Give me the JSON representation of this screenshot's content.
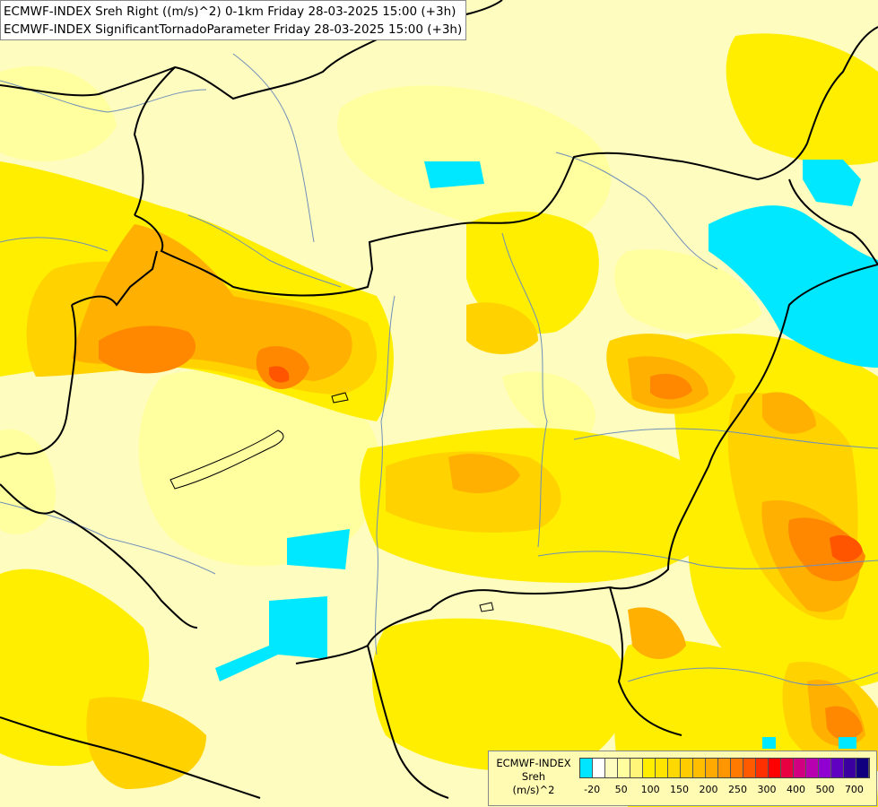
{
  "map": {
    "title_line1": "ECMWF-INDEX Sreh Right ((m/s)^2) 0-1km Friday 28-03-2025 15:00 (+3h)",
    "title_line2": "ECMWF-INDEX SignificantTornadoParameter Friday 28-03-2025 15:00 (+3h)",
    "colors": {
      "background": "#fffcc0",
      "pale": "#ffffa0",
      "yellow": "#ffee00",
      "gold": "#ffd200",
      "amber": "#ffb000",
      "orange": "#ff8800",
      "deep_orange": "#ff5500",
      "red": "#ff2200",
      "cyan": "#00e8ff",
      "border": "#000000",
      "river": "#6f8fb8"
    }
  },
  "legend": {
    "line1": "ECMWF-INDEX",
    "line2": "Sreh",
    "line3": "(m/s)^2",
    "swatches": [
      "#00e5ff",
      "#ffffff",
      "#fffcc0",
      "#ffffa0",
      "#fff578",
      "#ffee00",
      "#ffe400",
      "#ffd800",
      "#ffcc00",
      "#ffbe00",
      "#ffaa00",
      "#ff9600",
      "#ff7a00",
      "#ff5a00",
      "#ff3000",
      "#ff0000",
      "#e80040",
      "#d00080",
      "#b800b0",
      "#9000d0",
      "#6000c0",
      "#3a00a0",
      "#100080"
    ],
    "ticks": [
      {
        "label": "-20",
        "pos": 0.5
      },
      {
        "label": "50",
        "pos": 2.5
      },
      {
        "label": "100",
        "pos": 4.5
      },
      {
        "label": "150",
        "pos": 6.5
      },
      {
        "label": "200",
        "pos": 8.5
      },
      {
        "label": "250",
        "pos": 10.5
      },
      {
        "label": "300",
        "pos": 12.5
      },
      {
        "label": "400",
        "pos": 14.5
      },
      {
        "label": "500",
        "pos": 16.5
      },
      {
        "label": "700",
        "pos": 18.5
      }
    ]
  }
}
